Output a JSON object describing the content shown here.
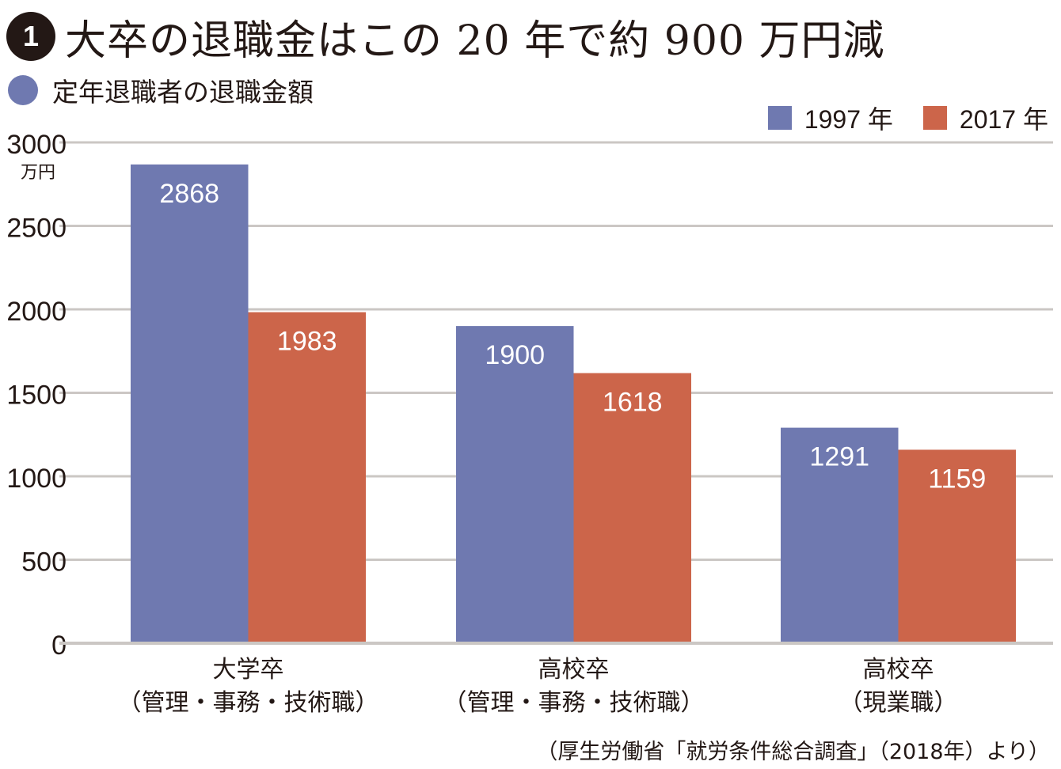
{
  "header": {
    "badge": "1",
    "title": "大卒の退職金はこの 20 年で約 900 万円減",
    "subtitle": "定年退職者の退職金額"
  },
  "colors": {
    "series_1997": "#6f79b0",
    "series_2017": "#cc654a",
    "grid": "#cbc7c4",
    "subtitle_dot": "#6f79b0"
  },
  "chart_data": {
    "type": "bar",
    "title": "定年退職者の退職金額",
    "ylabel": "",
    "y_unit": "万円",
    "ylim": [
      0,
      3000
    ],
    "yticks": [
      "0",
      "500",
      "1000",
      "1500",
      "2000",
      "2500",
      "3000"
    ],
    "ytick_values": [
      0,
      500,
      1000,
      1500,
      2000,
      2500,
      3000
    ],
    "grid": true,
    "legend_position": "top-right",
    "categories": [
      {
        "line1": "大学卒",
        "line2": "（管理・事務・技術職）"
      },
      {
        "line1": "高校卒",
        "line2": "（管理・事務・技術職）"
      },
      {
        "line1": "高校卒",
        "line2": "（現業職）"
      }
    ],
    "series": [
      {
        "name": "1997 年",
        "values": [
          2868,
          1900,
          1291
        ],
        "labels": [
          "2868",
          "1900",
          "1291"
        ]
      },
      {
        "name": "2017 年",
        "values": [
          1983,
          1618,
          1159
        ],
        "labels": [
          "1983",
          "1618",
          "1159"
        ]
      }
    ]
  },
  "source": "（厚生労働省「就労条件総合調査」（2018年）より）"
}
